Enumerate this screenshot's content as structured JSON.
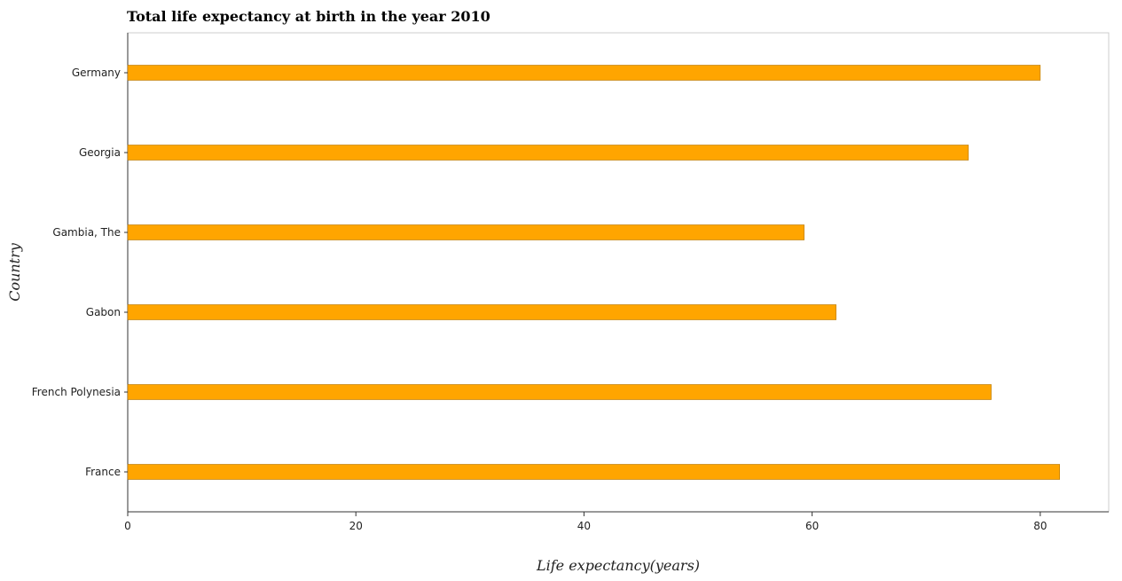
{
  "chart_data": {
    "type": "bar",
    "orientation": "horizontal",
    "title": "Total life expectancy at birth in the year 2010",
    "xlabel": "Life expectancy(years)",
    "ylabel": "Country",
    "categories": [
      "France",
      "French Polynesia",
      "Gabon",
      "Gambia, The",
      "Georgia",
      "Germany"
    ],
    "values": [
      81.7,
      75.7,
      62.1,
      59.3,
      73.7,
      80.0
    ],
    "xlim": [
      0,
      86
    ],
    "xticks": [
      0,
      20,
      40,
      60,
      80
    ],
    "grid": false,
    "legend": "none",
    "colors": {
      "bar": "#ffa500",
      "bar_stroke": "#b37400"
    }
  }
}
